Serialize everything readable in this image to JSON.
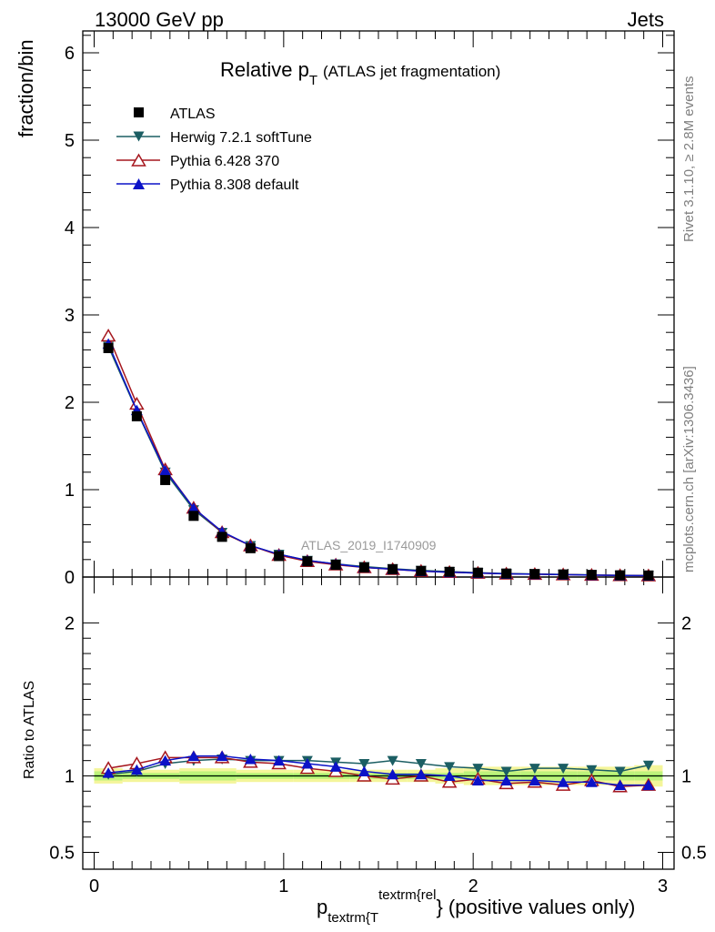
{
  "header": {
    "left": "13000 GeV pp",
    "right": "Jets"
  },
  "side_labels": {
    "rivet": "Rivet 3.1.10, ≥ 2.8M events",
    "mcplots": "mcplots.cern.ch [arXiv:1306.3436]"
  },
  "watermark": "ATLAS_2019_I1740909",
  "chart_data": [
    {
      "type": "scatter",
      "title_main": "Relative p",
      "title_sub": "T",
      "title_rest": "(ATLAS jet fragmentation)",
      "ylabel": "fraction/bin",
      "ylim": [
        0,
        6.25
      ],
      "yticks": [
        0,
        1,
        2,
        3,
        4,
        5,
        6
      ],
      "xlim": [
        -0.06,
        3.06
      ],
      "xticks": [
        0,
        1,
        2,
        3
      ],
      "x": [
        0.075,
        0.225,
        0.375,
        0.525,
        0.675,
        0.825,
        0.975,
        1.125,
        1.275,
        1.425,
        1.575,
        1.725,
        1.875,
        2.025,
        2.175,
        2.325,
        2.475,
        2.625,
        2.775,
        2.925
      ],
      "series": [
        {
          "name": "ATLAS",
          "color": "#000000",
          "marker": "square",
          "values": [
            2.62,
            1.84,
            1.11,
            0.7,
            0.46,
            0.33,
            0.24,
            0.18,
            0.14,
            0.11,
            0.09,
            0.07,
            0.06,
            0.05,
            0.04,
            0.035,
            0.03,
            0.025,
            0.02,
            0.018
          ]
        },
        {
          "name": "Herwig 7.2.1 softTune",
          "color": "#1b5e63",
          "marker": "triangle-down",
          "values": [
            2.64,
            1.9,
            1.2,
            0.77,
            0.51,
            0.36,
            0.26,
            0.19,
            0.15,
            0.12,
            0.095,
            0.075,
            0.062,
            0.05,
            0.04,
            0.035,
            0.03,
            0.025,
            0.02,
            0.018
          ]
        },
        {
          "name": "Pythia 6.428 370",
          "color": "#a6171e",
          "marker": "triangle-up-open",
          "values": [
            2.76,
            1.98,
            1.23,
            0.79,
            0.51,
            0.36,
            0.25,
            0.18,
            0.14,
            0.11,
            0.088,
            0.068,
            0.055,
            0.046,
            0.037,
            0.032,
            0.027,
            0.022,
            0.018,
            0.016
          ]
        },
        {
          "name": "Pythia 8.308 default",
          "color": "#0b12c7",
          "marker": "triangle-up",
          "values": [
            2.67,
            1.91,
            1.22,
            0.79,
            0.52,
            0.36,
            0.26,
            0.19,
            0.15,
            0.11,
            0.09,
            0.068,
            0.055,
            0.046,
            0.037,
            0.032,
            0.027,
            0.022,
            0.018,
            0.016
          ]
        }
      ],
      "legend_placement": "top-left"
    },
    {
      "type": "line",
      "ylabel": "Ratio to ATLAS",
      "ylim": [
        0.39,
        2.3
      ],
      "yticks": [
        0.5,
        1,
        2
      ],
      "ytick_labels": [
        "0.5",
        "1",
        "2"
      ],
      "xlim": [
        -0.06,
        3.06
      ],
      "xticks": [
        0,
        1,
        2,
        3
      ],
      "xlabel_main": "p",
      "xlabel_sub": "textrm{T",
      "xlabel_sup": "textrm{rel",
      "xlabel_rest": "} (positive values only)",
      "x": [
        0.075,
        0.225,
        0.375,
        0.525,
        0.675,
        0.825,
        0.975,
        1.125,
        1.275,
        1.425,
        1.575,
        1.725,
        1.875,
        2.025,
        2.175,
        2.325,
        2.475,
        2.625,
        2.775,
        2.925
      ],
      "band_inner": [
        0.03,
        0.02,
        0.02,
        0.03,
        0.03,
        0.02,
        0.02,
        0.02,
        0.02,
        0.02,
        0.02,
        0.02,
        0.02,
        0.03,
        0.03,
        0.03,
        0.03,
        0.03,
        0.03,
        0.03
      ],
      "band_outer": [
        0.05,
        0.04,
        0.04,
        0.05,
        0.05,
        0.04,
        0.04,
        0.04,
        0.04,
        0.04,
        0.04,
        0.04,
        0.05,
        0.06,
        0.06,
        0.06,
        0.06,
        0.06,
        0.06,
        0.07
      ],
      "series": [
        {
          "name": "Herwig 7.2.1 softTune",
          "color": "#1b5e63",
          "marker": "triangle-down",
          "values": [
            1.01,
            1.03,
            1.08,
            1.1,
            1.11,
            1.1,
            1.1,
            1.1,
            1.09,
            1.08,
            1.1,
            1.08,
            1.06,
            1.05,
            1.03,
            1.05,
            1.05,
            1.04,
            1.03,
            1.07
          ]
        },
        {
          "name": "Pythia 6.428 370",
          "color": "#a6171e",
          "marker": "triangle-up-open",
          "values": [
            1.05,
            1.08,
            1.12,
            1.12,
            1.12,
            1.09,
            1.08,
            1.05,
            1.03,
            1.0,
            0.98,
            1.0,
            0.96,
            0.98,
            0.95,
            0.96,
            0.94,
            0.97,
            0.93,
            0.94
          ]
        },
        {
          "name": "Pythia 8.308 default",
          "color": "#0b12c7",
          "marker": "triangle-up",
          "values": [
            1.02,
            1.04,
            1.1,
            1.13,
            1.13,
            1.11,
            1.1,
            1.08,
            1.06,
            1.03,
            1.01,
            1.01,
            1.0,
            0.97,
            0.97,
            0.97,
            0.96,
            0.96,
            0.94,
            0.94
          ]
        }
      ],
      "reference_line": 1.0,
      "reference_color": "#00a000"
    }
  ]
}
